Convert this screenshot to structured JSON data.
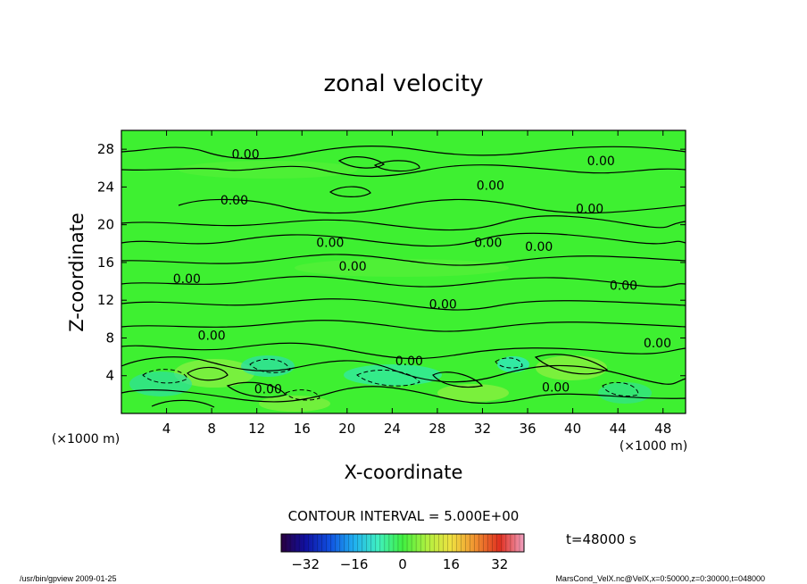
{
  "chart_data": {
    "type": "contour",
    "title": "zonal velocity",
    "xlabel": "X-coordinate",
    "ylabel": "Z-coordinate",
    "x_unit_left": "(×1000 m)",
    "x_unit_right": "(×1000 m)",
    "xlim": [
      0,
      50
    ],
    "ylim": [
      0,
      30
    ],
    "x_ticks": [
      4,
      8,
      12,
      16,
      20,
      24,
      28,
      32,
      36,
      40,
      44,
      48
    ],
    "y_ticks": [
      4,
      8,
      12,
      16,
      20,
      24,
      28
    ],
    "contour_interval_text": "CONTOUR INTERVAL = 5.000E+00",
    "time_text": "t=48000 s",
    "contour_labels": [
      {
        "text": "0.00",
        "x": 11,
        "z": 27.5
      },
      {
        "text": "0.00",
        "x": 42.5,
        "z": 26.8
      },
      {
        "text": "0.00",
        "x": 32.7,
        "z": 24.2
      },
      {
        "text": "0.00",
        "x": 10,
        "z": 22.6
      },
      {
        "text": "0.00",
        "x": 41.5,
        "z": 21.7
      },
      {
        "text": "0.00",
        "x": 18.5,
        "z": 18.1
      },
      {
        "text": "0.00",
        "x": 32.5,
        "z": 18.1
      },
      {
        "text": "0.00",
        "x": 37,
        "z": 17.7
      },
      {
        "text": "0.00",
        "x": 20.5,
        "z": 15.6
      },
      {
        "text": "0.00",
        "x": 5.8,
        "z": 14.3
      },
      {
        "text": "0.00",
        "x": 44.5,
        "z": 13.6
      },
      {
        "text": "0.00",
        "x": 28.5,
        "z": 11.6
      },
      {
        "text": "0.00",
        "x": 8,
        "z": 8.3
      },
      {
        "text": "0.00",
        "x": 47.5,
        "z": 7.5
      },
      {
        "text": "0.00",
        "x": 25.5,
        "z": 5.6
      },
      {
        "text": "0.00",
        "x": 13,
        "z": 2.6
      },
      {
        "text": "0.00",
        "x": 38.5,
        "z": 2.8
      }
    ],
    "colorbar": {
      "ticks": [
        -32,
        -16,
        0,
        16,
        32
      ],
      "range": [
        -40,
        40
      ],
      "colors": [
        "#2a0040",
        "#1010a0",
        "#1050e0",
        "#20b0f0",
        "#40f0c0",
        "#40f040",
        "#b0f040",
        "#f0e040",
        "#f09030",
        "#e03020",
        "#f0a0c0"
      ]
    }
  },
  "footer": {
    "left": "/usr/bin/gpview  2009-01-25",
    "right": "MarsCond_VelX.nc@VelX,x=0:50000,z=0:30000,t=048000"
  }
}
